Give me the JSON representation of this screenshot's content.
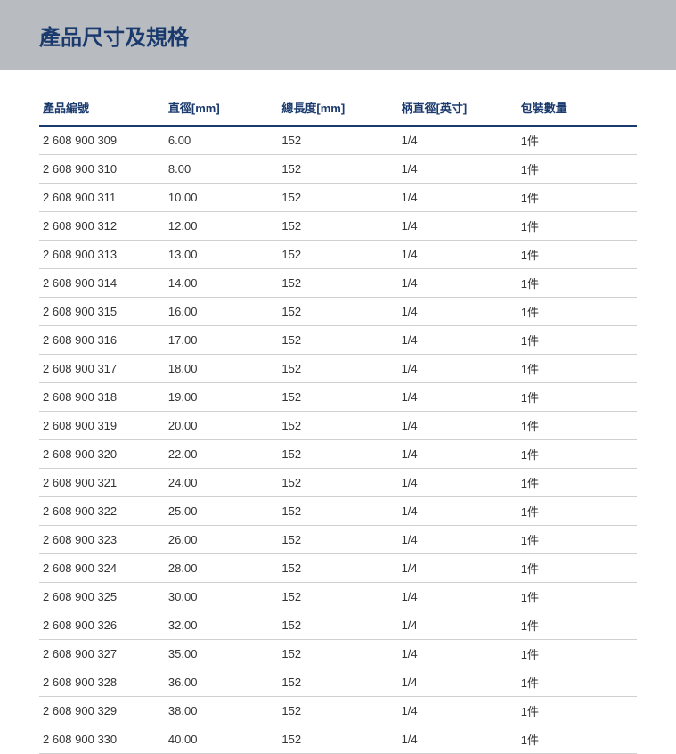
{
  "header": {
    "title": "產品尺寸及規格"
  },
  "table": {
    "columns": [
      "產品編號",
      "直徑[mm]",
      "總長度[mm]",
      "柄直徑[英寸]",
      "包裝數量"
    ],
    "rows": [
      [
        "2 608 900 309",
        "6.00",
        "152",
        "1/4",
        "1件"
      ],
      [
        "2 608 900 310",
        "8.00",
        "152",
        "1/4",
        "1件"
      ],
      [
        "2 608 900 311",
        "10.00",
        "152",
        "1/4",
        "1件"
      ],
      [
        "2 608 900 312",
        "12.00",
        "152",
        "1/4",
        "1件"
      ],
      [
        "2 608 900 313",
        "13.00",
        "152",
        "1/4",
        "1件"
      ],
      [
        "2 608 900 314",
        "14.00",
        "152",
        "1/4",
        "1件"
      ],
      [
        "2 608 900 315",
        "16.00",
        "152",
        "1/4",
        "1件"
      ],
      [
        "2 608 900 316",
        "17.00",
        "152",
        "1/4",
        "1件"
      ],
      [
        "2 608 900 317",
        "18.00",
        "152",
        "1/4",
        "1件"
      ],
      [
        "2 608 900 318",
        "19.00",
        "152",
        "1/4",
        "1件"
      ],
      [
        "2 608 900 319",
        "20.00",
        "152",
        "1/4",
        "1件"
      ],
      [
        "2 608 900 320",
        "22.00",
        "152",
        "1/4",
        "1件"
      ],
      [
        "2 608 900 321",
        "24.00",
        "152",
        "1/4",
        "1件"
      ],
      [
        "2 608 900 322",
        "25.00",
        "152",
        "1/4",
        "1件"
      ],
      [
        "2 608 900 323",
        "26.00",
        "152",
        "1/4",
        "1件"
      ],
      [
        "2 608 900 324",
        "28.00",
        "152",
        "1/4",
        "1件"
      ],
      [
        "2 608 900 325",
        "30.00",
        "152",
        "1/4",
        "1件"
      ],
      [
        "2 608 900 326",
        "32.00",
        "152",
        "1/4",
        "1件"
      ],
      [
        "2 608 900 327",
        "35.00",
        "152",
        "1/4",
        "1件"
      ],
      [
        "2 608 900 328",
        "36.00",
        "152",
        "1/4",
        "1件"
      ],
      [
        "2 608 900 329",
        "38.00",
        "152",
        "1/4",
        "1件"
      ],
      [
        "2 608 900 330",
        "40.00",
        "152",
        "1/4",
        "1件"
      ]
    ],
    "styling": {
      "header_bg": "#b8bcc0",
      "title_color": "#1a3a6e",
      "th_color": "#1a3a6e",
      "th_border_color": "#1a3a6e",
      "td_color": "#333333",
      "row_border_color": "#d0d0d0",
      "background_color": "#ffffff",
      "title_fontsize": 24,
      "th_fontsize": 13,
      "td_fontsize": 13,
      "col_widths_pct": [
        21,
        19,
        20,
        20,
        20
      ]
    }
  }
}
